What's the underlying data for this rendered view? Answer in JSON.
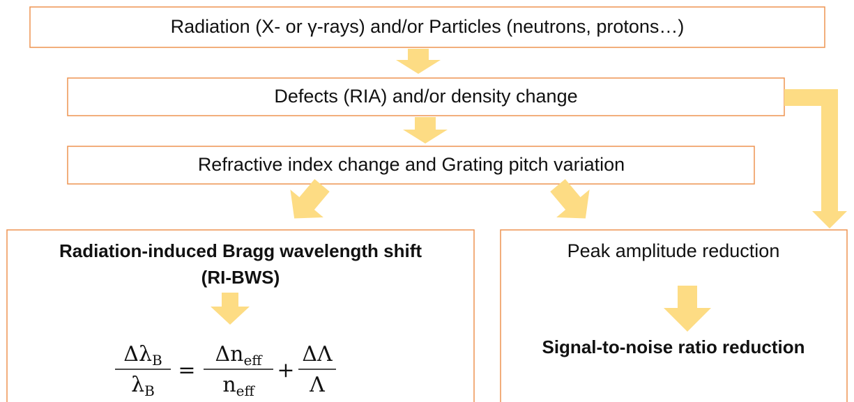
{
  "boxes": [
    {
      "text": "Radiation (X- or γ-rays) and/or Particles (neutrons, protons…)"
    },
    {
      "text": "Defects (RIA) and/or density change"
    },
    {
      "text": "Refractive index change and Grating pitch variation"
    }
  ],
  "left_panel": {
    "title_lines": [
      "Radiation-induced Bragg wavelength shift",
      "(RI-BWS)"
    ],
    "formula": {
      "terms": [
        {
          "numerator": {
            "base": "Δλ",
            "sub": "B"
          },
          "denominator": {
            "base": "λ",
            "sub": "B"
          }
        },
        {
          "numerator": {
            "base": "Δn",
            "sub": "eff"
          },
          "denominator": {
            "base": "n",
            "sub": "eff"
          }
        },
        {
          "numerator": {
            "base": "ΔΛ"
          },
          "denominator": {
            "base": "Λ"
          }
        }
      ],
      "operators": [
        "=",
        "+"
      ]
    }
  },
  "right_panel": {
    "top_text": "Peak amplitude reduction",
    "bottom_text": "Signal-to-noise ratio reduction"
  }
}
